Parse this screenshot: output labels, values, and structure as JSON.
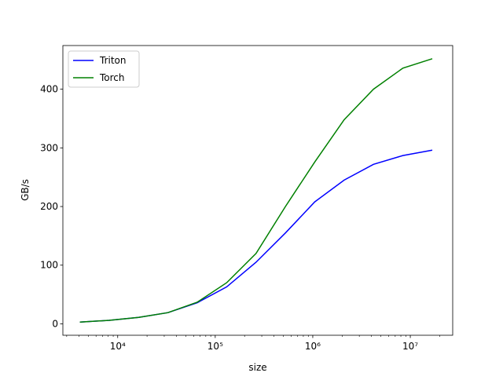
{
  "chart_data": {
    "type": "line",
    "x_label": "size",
    "y_label": "GB/s",
    "x": [
      4096,
      8192,
      16384,
      32768,
      65536,
      131072,
      262144,
      524288,
      1048576,
      2097152,
      4194304,
      8388608,
      16777216
    ],
    "series": [
      {
        "name": "Triton",
        "color": "#0000ff",
        "values": [
          3,
          6,
          11,
          19,
          36,
          63,
          105,
          155,
          208,
          245,
          272,
          287,
          296
        ]
      },
      {
        "name": "Torch",
        "color": "#008000",
        "values": [
          3,
          6,
          11,
          19,
          37,
          70,
          120,
          200,
          276,
          348,
          400,
          436,
          452
        ]
      }
    ],
    "xscale": "log",
    "xlim": [
      2742,
      27200000
    ],
    "xticks": [
      {
        "value": 10000,
        "label": "10⁴"
      },
      {
        "value": 100000,
        "label": "10⁵"
      },
      {
        "value": 1000000,
        "label": "10⁶"
      },
      {
        "value": 10000000,
        "label": "10⁷"
      }
    ],
    "xminorticks": [
      3000,
      4000,
      5000,
      6000,
      7000,
      8000,
      9000,
      20000,
      30000,
      40000,
      50000,
      60000,
      70000,
      80000,
      90000,
      200000,
      300000,
      400000,
      500000,
      600000,
      700000,
      800000,
      900000,
      2000000,
      3000000,
      4000000,
      5000000,
      6000000,
      7000000,
      8000000,
      9000000,
      20000000
    ],
    "ylim": [
      -19.5,
      474.5
    ],
    "yticks": [
      0,
      100,
      200,
      300,
      400
    ],
    "legend": "upper left"
  }
}
